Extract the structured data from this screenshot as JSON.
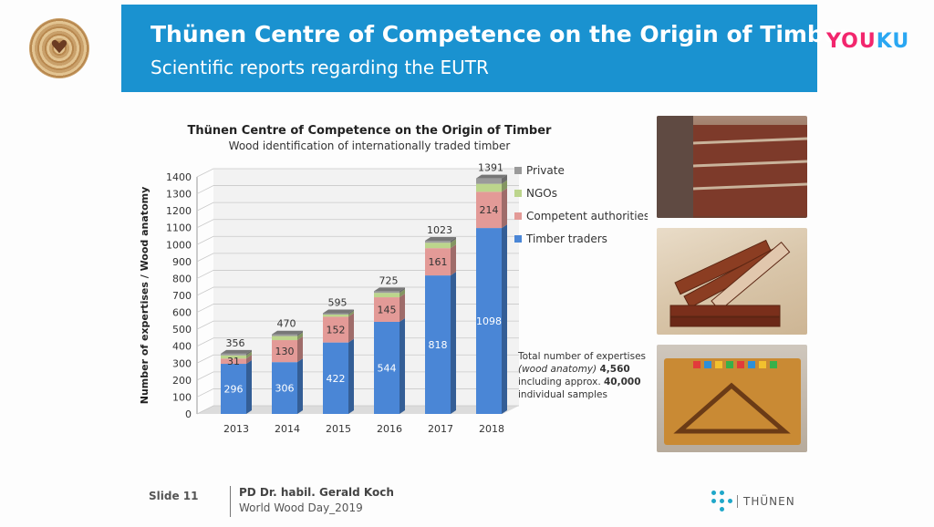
{
  "header": {
    "title": "Thünen Centre of Competence on the Origin of Timber",
    "subtitle": "Scientific reports regarding the EUTR"
  },
  "watermark": {
    "part1": "YOU",
    "part2": "KU"
  },
  "footer": {
    "slide": "Slide 11",
    "author": "PD Dr. habil. Gerald Koch",
    "event": "World Wood Day_2019",
    "org": "THÜNEN"
  },
  "colors": {
    "header_bg": "#1a92d0",
    "timber_traders": "#4a86d6",
    "competent_authorities": "#e39a97",
    "ngos": "#bcd58c",
    "private": "#9a9a9a"
  },
  "chart_data": {
    "type": "bar",
    "stacked": true,
    "title": "Thünen Centre of Competence on the Origin of Timber",
    "subtitle": "Wood identification of internationally traded timber",
    "ylabel": "Number of expertises / Wood anatomy",
    "xlabel": "",
    "ylim": [
      0,
      1400
    ],
    "yticks": [
      0,
      100,
      200,
      300,
      400,
      500,
      600,
      700,
      800,
      900,
      1000,
      1100,
      1200,
      1300,
      1400
    ],
    "categories": [
      "2013",
      "2014",
      "2015",
      "2016",
      "2017",
      "2018"
    ],
    "totals": [
      356,
      470,
      595,
      725,
      1023,
      1391
    ],
    "series": [
      {
        "name": "Timber traders",
        "values": [
          296,
          306,
          422,
          544,
          818,
          1098
        ],
        "labels": [
          "296",
          "306",
          "422",
          "544",
          "818",
          "1098"
        ]
      },
      {
        "name": "Competent authorities",
        "values": [
          31,
          130,
          152,
          145,
          161,
          214
        ],
        "labels": [
          "31",
          "130",
          "152",
          "145",
          "161",
          "214"
        ]
      },
      {
        "name": "NGOs",
        "values": [
          19,
          24,
          13,
          26,
          32,
          47
        ],
        "labels": [
          "",
          "",
          "",
          "",
          "",
          ""
        ]
      },
      {
        "name": "Private",
        "values": [
          10,
          10,
          8,
          10,
          12,
          32
        ],
        "labels": [
          "",
          "",
          "",
          "",
          "",
          ""
        ]
      }
    ],
    "legend": [
      "Private",
      "NGOs",
      "Competent authorities",
      "Timber traders"
    ],
    "legend_position": "right",
    "grid": true,
    "annotation": {
      "line1": "Total number of expertises",
      "line2_italic": "(wood anatomy)",
      "line2_bold": "4,560",
      "line3": "including approx.",
      "line3_bold": "40,000",
      "line4": "individual samples"
    }
  }
}
